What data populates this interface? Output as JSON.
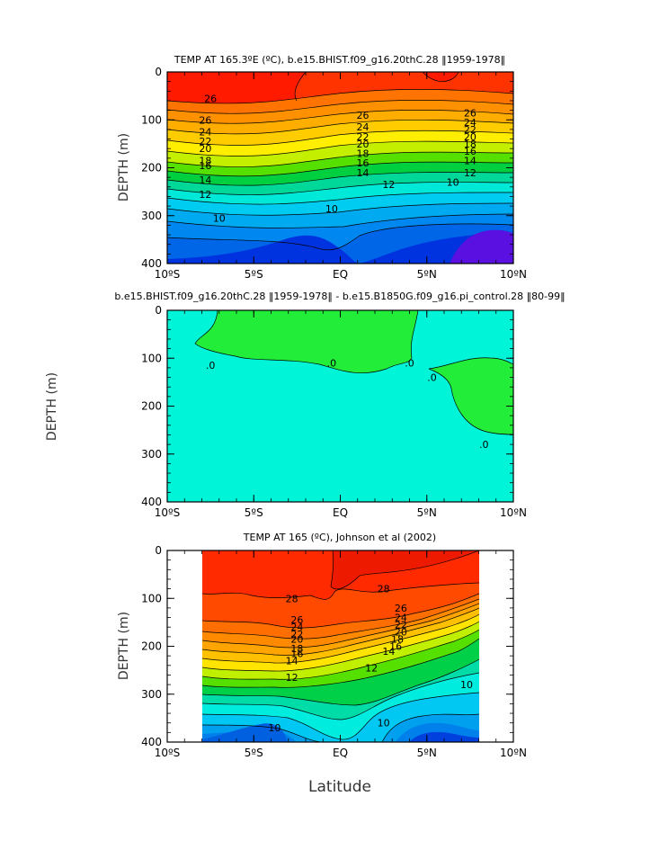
{
  "chart_data": [
    {
      "type": "contour",
      "title": "TEMP AT 165.3ºE (ºC), b.e15.BHIST.f09_g16.20thC.28 ‖1959-1978‖",
      "ylabel": "DEPTH (m)",
      "xlabel": "",
      "x_ticks": [
        "10ºS",
        "5ºS",
        "EQ",
        "5ºN",
        "10ºN"
      ],
      "y_ticks": [
        "0",
        "100",
        "200",
        "300",
        "400"
      ],
      "xlim": [
        -10,
        10
      ],
      "ylim": [
        400,
        0
      ],
      "contour_labels": [
        {
          "text": "26",
          "lat": -7.5,
          "depth": 55
        },
        {
          "text": "26",
          "lat": -7.8,
          "depth": 100
        },
        {
          "text": "24",
          "lat": -7.8,
          "depth": 125
        },
        {
          "text": "22",
          "lat": -7.8,
          "depth": 145
        },
        {
          "text": "20",
          "lat": -7.8,
          "depth": 160
        },
        {
          "text": "18",
          "lat": -7.8,
          "depth": 185
        },
        {
          "text": "16",
          "lat": -7.8,
          "depth": 195
        },
        {
          "text": "14",
          "lat": -7.8,
          "depth": 225
        },
        {
          "text": "12",
          "lat": -7.8,
          "depth": 255
        },
        {
          "text": "10",
          "lat": -7.0,
          "depth": 305
        },
        {
          "text": "26",
          "lat": 1.3,
          "depth": 90
        },
        {
          "text": "24",
          "lat": 1.3,
          "depth": 115
        },
        {
          "text": "22",
          "lat": 1.3,
          "depth": 135
        },
        {
          "text": "20",
          "lat": 1.3,
          "depth": 150
        },
        {
          "text": "18",
          "lat": 1.3,
          "depth": 170
        },
        {
          "text": "16",
          "lat": 1.3,
          "depth": 190
        },
        {
          "text": "14",
          "lat": 1.3,
          "depth": 210
        },
        {
          "text": "12",
          "lat": 2.8,
          "depth": 235
        },
        {
          "text": "10",
          "lat": -0.5,
          "depth": 285
        },
        {
          "text": "26",
          "lat": 7.5,
          "depth": 85
        },
        {
          "text": "24",
          "lat": 7.5,
          "depth": 105
        },
        {
          "text": "22",
          "lat": 7.5,
          "depth": 120
        },
        {
          "text": "20",
          "lat": 7.5,
          "depth": 135
        },
        {
          "text": "18",
          "lat": 7.5,
          "depth": 150
        },
        {
          "text": "16",
          "lat": 7.5,
          "depth": 165
        },
        {
          "text": "14",
          "lat": 7.5,
          "depth": 185
        },
        {
          "text": "12",
          "lat": 7.5,
          "depth": 210
        },
        {
          "text": "10",
          "lat": 6.5,
          "depth": 230
        }
      ]
    },
    {
      "type": "contour",
      "title": "b.e15.BHIST.f09_g16.20thC.28 ‖1959-1978‖ - b.e15.B1850G.f09_g16.pi_control.28 ‖80-99‖",
      "ylabel": "DEPTH (m)",
      "xlabel": "",
      "x_ticks": [
        "10ºS",
        "5ºS",
        "EQ",
        "5ºN",
        "10ºN"
      ],
      "y_ticks": [
        "0",
        "100",
        "200",
        "300",
        "400"
      ],
      "xlim": [
        -10,
        10
      ],
      "ylim": [
        400,
        0
      ],
      "contour_labels": [
        {
          "text": ".0",
          "lat": -7.5,
          "depth": 115
        },
        {
          "text": ".0",
          "lat": -0.5,
          "depth": 110
        },
        {
          "text": ".0",
          "lat": 4.0,
          "depth": 110
        },
        {
          "text": ".0",
          "lat": 5.3,
          "depth": 140
        },
        {
          "text": ".0",
          "lat": 8.3,
          "depth": 280
        }
      ]
    },
    {
      "type": "contour",
      "title": "TEMP AT 165 (ºC), Johnson et al (2002)",
      "ylabel": "DEPTH (m)",
      "xlabel": "Latitude",
      "x_ticks": [
        "10ºS",
        "5ºS",
        "EQ",
        "5ºN",
        "10ºN"
      ],
      "y_ticks": [
        "0",
        "100",
        "200",
        "300",
        "400"
      ],
      "xlim": [
        -10,
        10
      ],
      "ylim": [
        400,
        0
      ],
      "data_extent_lat": [
        -8,
        8
      ],
      "contour_labels": [
        {
          "text": "28",
          "lat": -2.8,
          "depth": 100
        },
        {
          "text": "28",
          "lat": 2.5,
          "depth": 80
        },
        {
          "text": "26",
          "lat": -2.5,
          "depth": 145
        },
        {
          "text": "24",
          "lat": -2.5,
          "depth": 160
        },
        {
          "text": "22",
          "lat": -2.5,
          "depth": 175
        },
        {
          "text": "20",
          "lat": -2.5,
          "depth": 185
        },
        {
          "text": "18",
          "lat": -2.5,
          "depth": 205
        },
        {
          "text": "16",
          "lat": -2.5,
          "depth": 215
        },
        {
          "text": "14",
          "lat": -2.8,
          "depth": 230
        },
        {
          "text": "12",
          "lat": -2.8,
          "depth": 265
        },
        {
          "text": "26",
          "lat": 3.5,
          "depth": 120
        },
        {
          "text": "24",
          "lat": 3.5,
          "depth": 140
        },
        {
          "text": "22",
          "lat": 3.5,
          "depth": 155
        },
        {
          "text": "20",
          "lat": 3.5,
          "depth": 170
        },
        {
          "text": "18",
          "lat": 3.3,
          "depth": 185
        },
        {
          "text": "16",
          "lat": 3.2,
          "depth": 200
        },
        {
          "text": "14",
          "lat": 2.8,
          "depth": 210
        },
        {
          "text": "12",
          "lat": 1.8,
          "depth": 245
        },
        {
          "text": "10",
          "lat": 7.3,
          "depth": 280
        },
        {
          "text": "10",
          "lat": -3.8,
          "depth": 370
        },
        {
          "text": "10",
          "lat": 2.5,
          "depth": 360
        }
      ]
    }
  ]
}
